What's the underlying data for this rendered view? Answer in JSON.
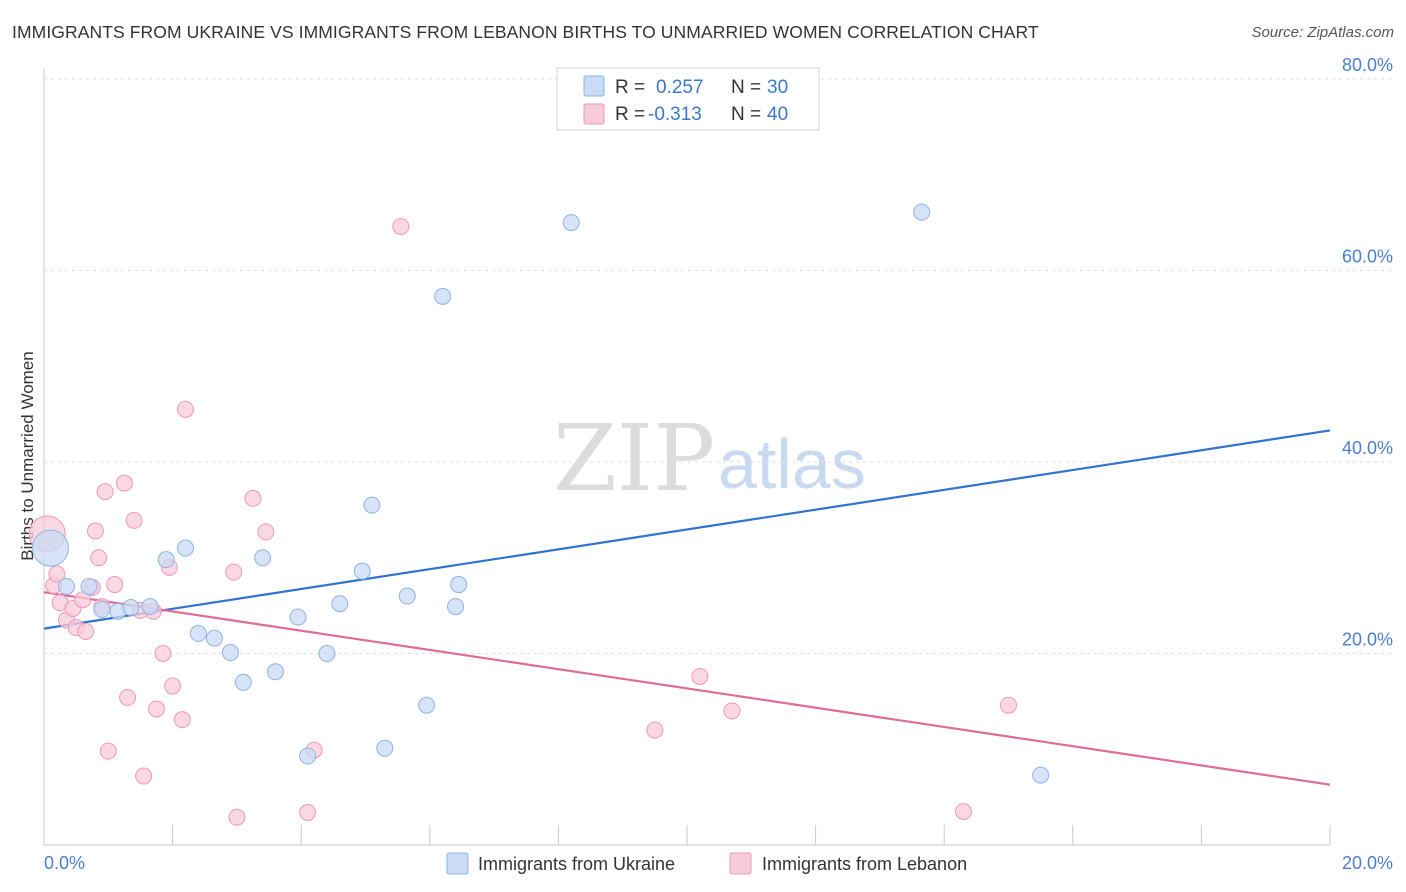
{
  "title": "IMMIGRANTS FROM UKRAINE VS IMMIGRANTS FROM LEBANON BIRTHS TO UNMARRIED WOMEN CORRELATION CHART",
  "source": "Source: ZipAtlas.com",
  "watermark": {
    "part1": "ZIP",
    "part2": "atlas"
  },
  "colors": {
    "ukraine_fill": "#c9dbf5",
    "ukraine_stroke": "#8fb3e6",
    "ukraine_line": "#2f74d0",
    "lebanon_fill": "#f8cbd9",
    "lebanon_stroke": "#ee9ab5",
    "lebanon_line": "#e06b96"
  },
  "legend": {
    "rows": [
      {
        "r_label": "R =",
        "r_value": "0.257",
        "n_label": "N =",
        "n_value": "30"
      },
      {
        "r_label": "R =",
        "r_value": "-0.313",
        "n_label": "N =",
        "n_value": "40"
      }
    ]
  },
  "chart_data": {
    "type": "scatter",
    "title": "IMMIGRANTS FROM UKRAINE VS IMMIGRANTS FROM LEBANON BIRTHS TO UNMARRIED WOMEN CORRELATION CHART",
    "xlabel": "",
    "ylabel": "Births to Unmarried Women",
    "xlim": [
      0,
      20
    ],
    "ylim": [
      0,
      80
    ],
    "x_tick_labels": [
      "0.0%",
      "20.0%"
    ],
    "y_ticks": [
      20,
      40,
      60,
      80
    ],
    "y_tick_labels": [
      "20.0%",
      "40.0%",
      "60.0%",
      "80.0%"
    ],
    "grid": true,
    "legend_position": "bottom",
    "series": [
      {
        "name": "Immigrants from Ukraine",
        "r": 0.257,
        "n": 30,
        "trend": {
          "x": [
            0,
            20
          ],
          "y": [
            22.6,
            43.3
          ]
        },
        "points": [
          {
            "x": 0.1,
            "y": 31.0,
            "big": true
          },
          {
            "x": 0.35,
            "y": 27.0
          },
          {
            "x": 0.7,
            "y": 27.0
          },
          {
            "x": 0.9,
            "y": 24.6
          },
          {
            "x": 1.15,
            "y": 24.4
          },
          {
            "x": 1.35,
            "y": 24.8
          },
          {
            "x": 1.65,
            "y": 24.9
          },
          {
            "x": 1.9,
            "y": 29.8
          },
          {
            "x": 2.2,
            "y": 31.0
          },
          {
            "x": 2.4,
            "y": 22.1
          },
          {
            "x": 2.65,
            "y": 21.6
          },
          {
            "x": 2.9,
            "y": 20.1
          },
          {
            "x": 3.1,
            "y": 17.0
          },
          {
            "x": 3.4,
            "y": 30.0
          },
          {
            "x": 3.6,
            "y": 18.1
          },
          {
            "x": 3.95,
            "y": 23.8
          },
          {
            "x": 4.1,
            "y": 9.3
          },
          {
            "x": 4.4,
            "y": 20.0
          },
          {
            "x": 4.6,
            "y": 25.2
          },
          {
            "x": 4.95,
            "y": 28.6
          },
          {
            "x": 5.1,
            "y": 35.5
          },
          {
            "x": 5.3,
            "y": 10.1
          },
          {
            "x": 5.65,
            "y": 26.0
          },
          {
            "x": 5.95,
            "y": 14.6
          },
          {
            "x": 6.2,
            "y": 57.3
          },
          {
            "x": 6.4,
            "y": 24.9
          },
          {
            "x": 6.45,
            "y": 27.2
          },
          {
            "x": 8.2,
            "y": 65.0
          },
          {
            "x": 13.65,
            "y": 66.1
          },
          {
            "x": 15.5,
            "y": 7.3
          }
        ]
      },
      {
        "name": "Immigrants from Lebanon",
        "r": -0.313,
        "n": 40,
        "trend": {
          "x": [
            0,
            20
          ],
          "y": [
            26.4,
            6.3
          ]
        },
        "points": [
          {
            "x": 0.05,
            "y": 32.5,
            "big": true
          },
          {
            "x": 0.15,
            "y": 27.1
          },
          {
            "x": 0.2,
            "y": 28.3
          },
          {
            "x": 0.25,
            "y": 25.3
          },
          {
            "x": 0.35,
            "y": 23.5
          },
          {
            "x": 0.45,
            "y": 24.7
          },
          {
            "x": 0.5,
            "y": 22.7
          },
          {
            "x": 0.6,
            "y": 25.6
          },
          {
            "x": 0.65,
            "y": 22.3
          },
          {
            "x": 0.75,
            "y": 26.9
          },
          {
            "x": 0.8,
            "y": 32.8
          },
          {
            "x": 0.85,
            "y": 30.0
          },
          {
            "x": 0.9,
            "y": 24.9
          },
          {
            "x": 0.95,
            "y": 36.9
          },
          {
            "x": 1.0,
            "y": 9.8
          },
          {
            "x": 1.1,
            "y": 27.2
          },
          {
            "x": 1.25,
            "y": 37.8
          },
          {
            "x": 1.3,
            "y": 15.4
          },
          {
            "x": 1.4,
            "y": 33.9
          },
          {
            "x": 1.5,
            "y": 24.5
          },
          {
            "x": 1.55,
            "y": 7.2
          },
          {
            "x": 1.7,
            "y": 24.4
          },
          {
            "x": 1.75,
            "y": 14.2
          },
          {
            "x": 1.85,
            "y": 20.0
          },
          {
            "x": 1.95,
            "y": 29.0
          },
          {
            "x": 2.0,
            "y": 16.6
          },
          {
            "x": 2.15,
            "y": 13.1
          },
          {
            "x": 2.2,
            "y": 45.5
          },
          {
            "x": 2.95,
            "y": 28.5
          },
          {
            "x": 3.0,
            "y": 2.9
          },
          {
            "x": 3.25,
            "y": 36.2
          },
          {
            "x": 3.45,
            "y": 32.7
          },
          {
            "x": 4.1,
            "y": 3.4
          },
          {
            "x": 4.2,
            "y": 9.9
          },
          {
            "x": 5.55,
            "y": 64.6
          },
          {
            "x": 9.5,
            "y": 12.0
          },
          {
            "x": 10.2,
            "y": 17.6
          },
          {
            "x": 10.7,
            "y": 14.0
          },
          {
            "x": 14.3,
            "y": 3.5
          },
          {
            "x": 15.0,
            "y": 14.6
          }
        ]
      }
    ]
  }
}
